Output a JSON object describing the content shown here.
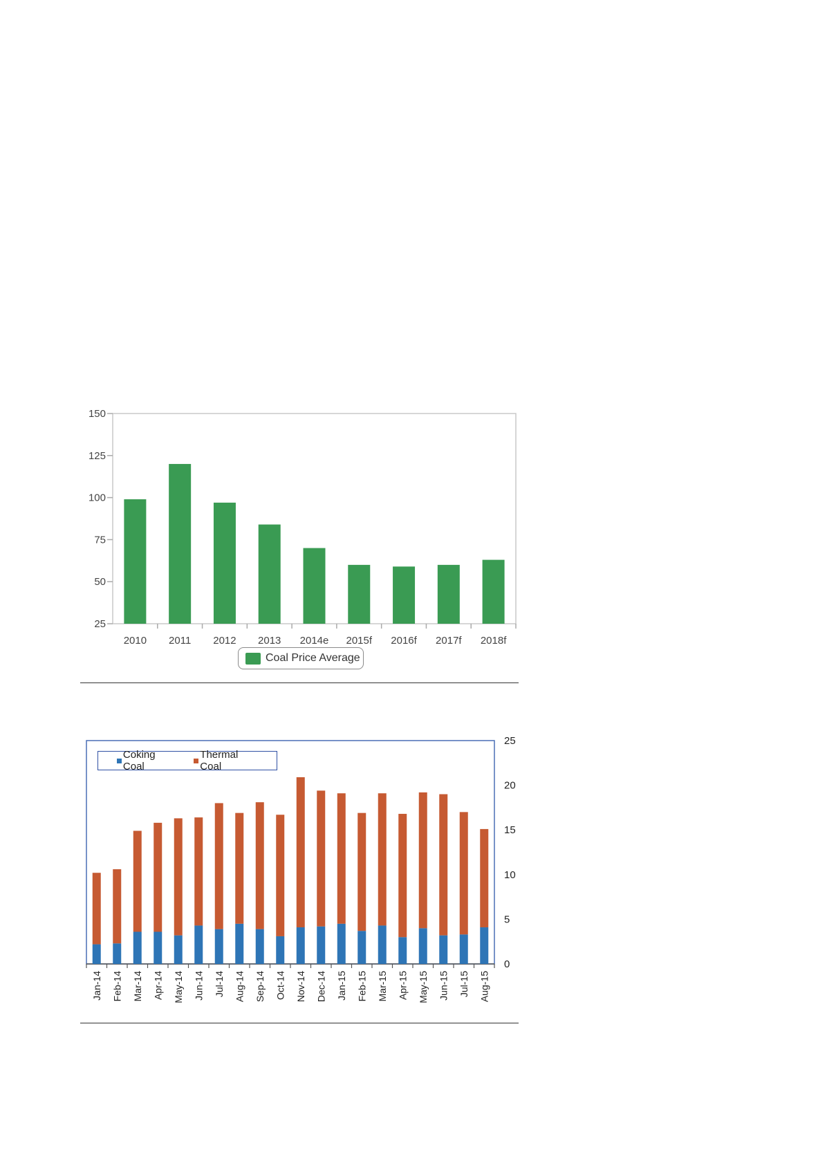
{
  "charts": {
    "price": {
      "legend_label": "Coal Price Average",
      "bar_color": "#3a9b53"
    },
    "production": {
      "legend": [
        {
          "label": "Coking Coal",
          "color": "#2e75b6"
        },
        {
          "label": "Thermal Coal",
          "color": "#c65a32"
        }
      ]
    }
  },
  "chart_data": [
    {
      "type": "bar",
      "categories": [
        "2010",
        "2011",
        "2012",
        "2013",
        "2014e",
        "2015f",
        "2016f",
        "2017f",
        "2018f"
      ],
      "series": [
        {
          "name": "Coal Price Average",
          "values": [
            99,
            120,
            97,
            84,
            70,
            60,
            59,
            60,
            63
          ]
        }
      ],
      "ylim": [
        25,
        150
      ],
      "yticks": [
        25,
        50,
        75,
        100,
        125,
        150
      ],
      "grid": false,
      "legend": "bottom-center"
    },
    {
      "type": "bar",
      "stacked": true,
      "categories": [
        "Jan-14",
        "Feb-14",
        "Mar-14",
        "Apr-14",
        "May-14",
        "Jun-14",
        "Jul-14",
        "Aug-14",
        "Sep-14",
        "Oct-14",
        "Nov-14",
        "Dec-14",
        "Jan-15",
        "Feb-15",
        "Mar-15",
        "Apr-15",
        "May-15",
        "Jun-15",
        "Jul-15",
        "Aug-15"
      ],
      "series": [
        {
          "name": "Coking Coal",
          "values": [
            2.2,
            2.3,
            3.6,
            3.6,
            3.2,
            4.3,
            3.9,
            4.5,
            3.9,
            3.1,
            4.1,
            4.2,
            4.5,
            3.7,
            4.3,
            3.0,
            4.0,
            3.2,
            3.3,
            4.1
          ]
        },
        {
          "name": "Thermal Coal",
          "values": [
            8.0,
            8.3,
            11.3,
            12.2,
            13.1,
            12.1,
            14.1,
            12.4,
            14.2,
            13.6,
            16.8,
            15.2,
            14.6,
            13.2,
            14.8,
            13.8,
            15.2,
            15.8,
            13.7,
            11.0
          ]
        }
      ],
      "ylim": [
        0,
        25
      ],
      "yticks": [
        0,
        5,
        10,
        15,
        20,
        25
      ],
      "y_axis_side": "right",
      "grid": false,
      "legend": "top-left"
    }
  ]
}
